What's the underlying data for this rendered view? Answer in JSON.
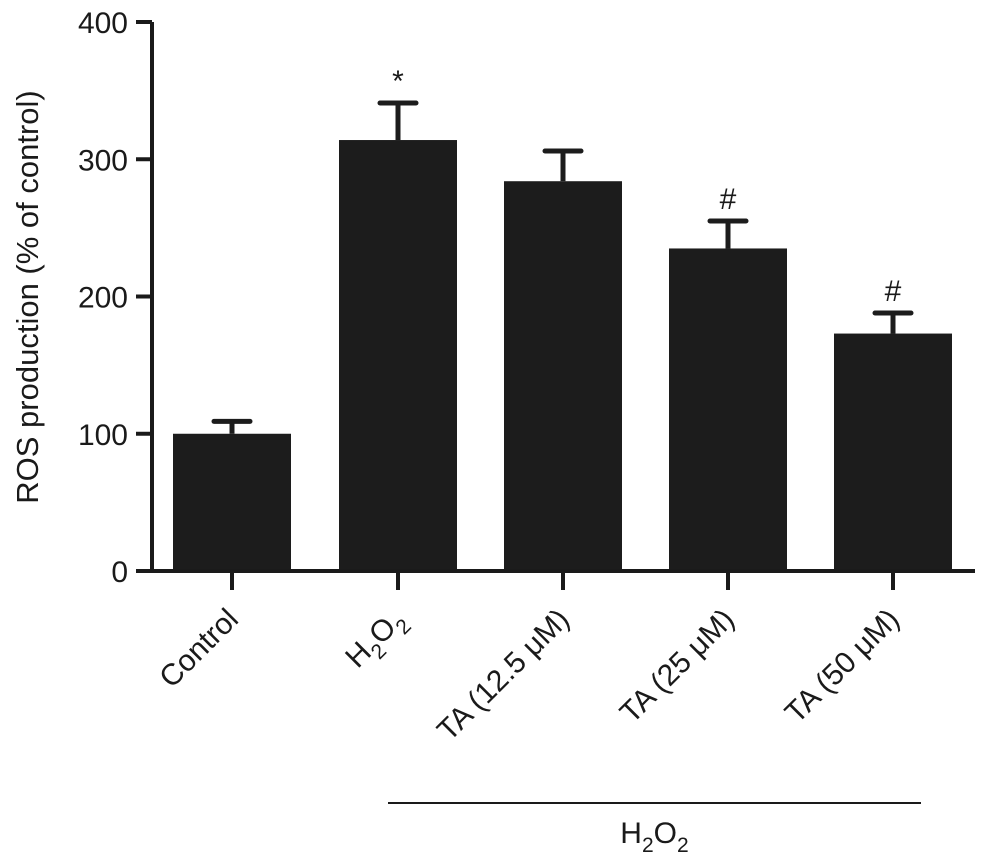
{
  "chart_data": {
    "type": "bar",
    "categories": [
      "Control",
      "H2O2",
      "TA (12.5 μM)",
      "TA (25 μM)",
      "TA (50 μM)"
    ],
    "category_labels": [
      {
        "text": "Control"
      },
      {
        "text": "H",
        "sub": "2",
        "text2": "O",
        "sub2": "2"
      },
      {
        "text": "TA (12.5 μM)"
      },
      {
        "text": "TA (25 μM)"
      },
      {
        "text": "TA (50 μM)"
      }
    ],
    "values": [
      100,
      314,
      284,
      235,
      173
    ],
    "errors": [
      9,
      27,
      22,
      20,
      15
    ],
    "annotations": [
      "",
      "*",
      "",
      "#",
      "#"
    ],
    "ylabel": "ROS production (% of control)",
    "ylim": [
      0,
      400
    ],
    "yticks": [
      0,
      100,
      200,
      300,
      400
    ],
    "group_label": {
      "text": "H",
      "sub": "2",
      "text2": "O",
      "sub2": "2"
    },
    "group_span": [
      "TA (12.5 μM)",
      "TA (50 μM)"
    ],
    "bar_color": "#1c1c1c",
    "grid": false,
    "legend": "none"
  }
}
